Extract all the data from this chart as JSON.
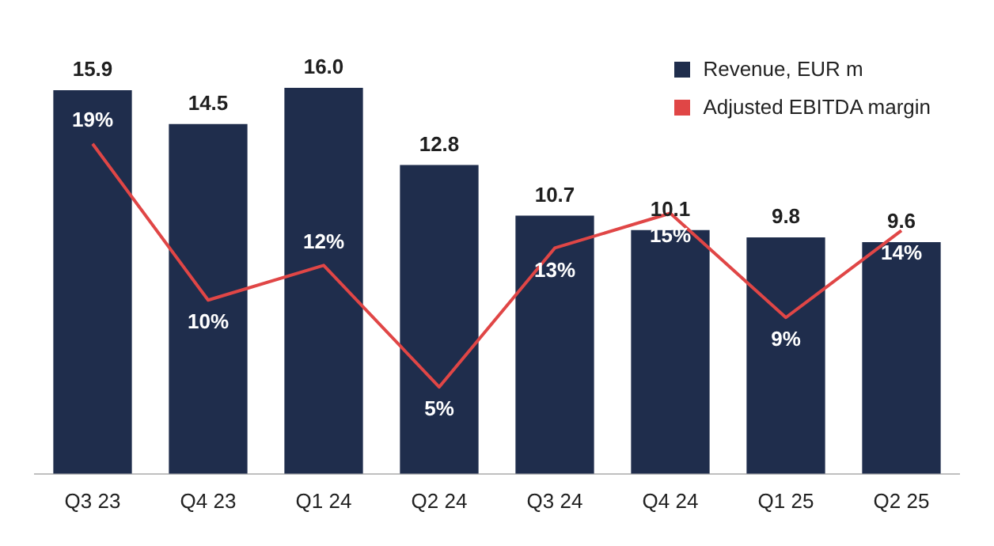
{
  "chart_data": {
    "type": "bar",
    "categories": [
      "Q3 23",
      "Q4 23",
      "Q1 24",
      "Q2 24",
      "Q3 24",
      "Q4 24",
      "Q1 25",
      "Q2 25"
    ],
    "series": [
      {
        "name": "Revenue, EUR m",
        "color": "#1f2d4c",
        "values": [
          15.9,
          14.5,
          16.0,
          12.8,
          10.7,
          10.1,
          9.8,
          9.6
        ],
        "value_labels": [
          "15.9",
          "14.5",
          "16.0",
          "12.8",
          "10.7",
          "10.1",
          "9.8",
          "9.6"
        ]
      },
      {
        "name": "Adjusted EBITDA margin",
        "type": "line",
        "axis": "y2",
        "color": "#e04646",
        "values": [
          19,
          10,
          12,
          5,
          13,
          15,
          9,
          14
        ],
        "value_labels": [
          "19%",
          "10%",
          "12%",
          "5%",
          "13%",
          "15%",
          "9%",
          "14%"
        ]
      }
    ],
    "grid": false,
    "legend": "top right",
    "marker": "none"
  }
}
